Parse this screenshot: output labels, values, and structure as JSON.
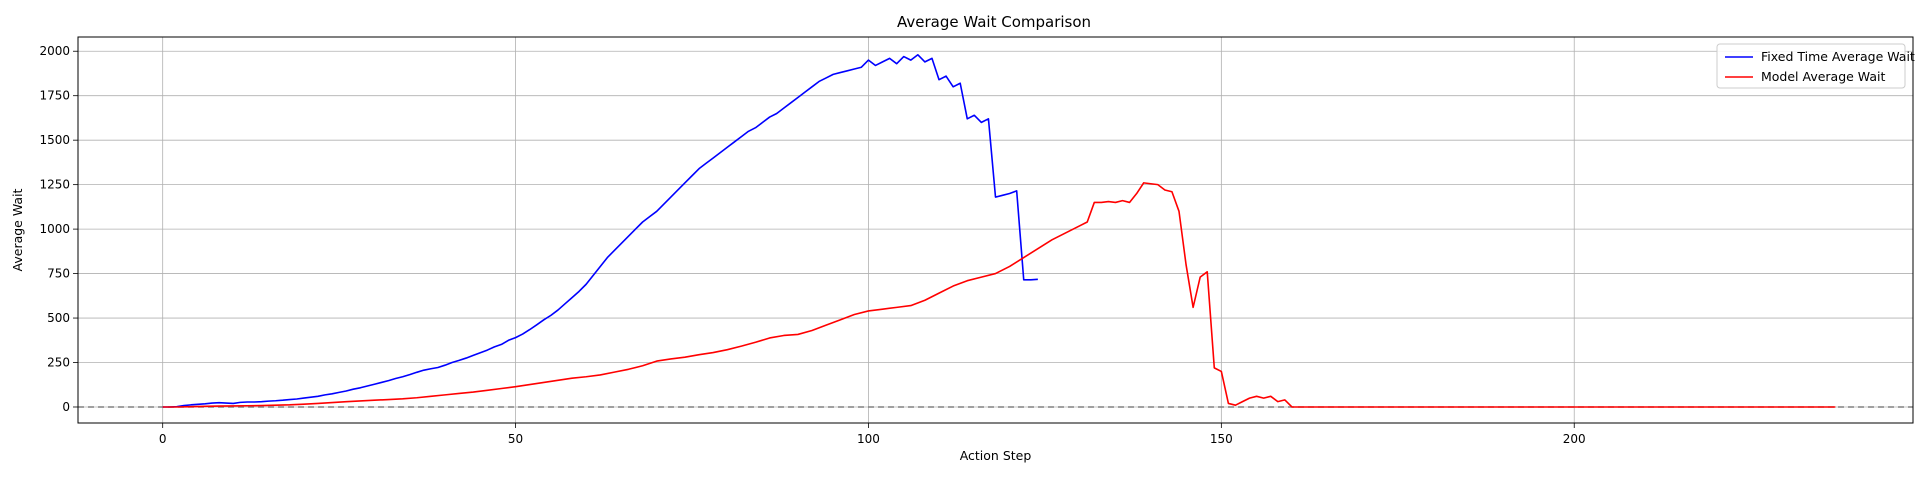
{
  "chart_data": {
    "type": "line",
    "title": "Average Wait Comparison",
    "xlabel": "Action Step",
    "ylabel": "Average Wait",
    "xlim": [
      -12,
      248
    ],
    "ylim": [
      -90,
      2080
    ],
    "xticks": [
      0,
      50,
      100,
      150,
      200
    ],
    "yticks": [
      0,
      250,
      500,
      750,
      1000,
      1250,
      1500,
      1750,
      2000
    ],
    "grid": true,
    "legend_position": "top-right",
    "reference_line": {
      "y": 0,
      "style": "dashed",
      "color": "#808080"
    },
    "series": [
      {
        "name": "Fixed Time Average Wait",
        "color": "#0000ff",
        "x": [
          0,
          1,
          2,
          3,
          4,
          5,
          6,
          7,
          8,
          9,
          10,
          11,
          12,
          13,
          14,
          15,
          16,
          17,
          18,
          19,
          20,
          21,
          22,
          23,
          24,
          25,
          26,
          27,
          28,
          29,
          30,
          31,
          32,
          33,
          34,
          35,
          36,
          37,
          38,
          39,
          40,
          41,
          42,
          43,
          44,
          45,
          46,
          47,
          48,
          49,
          50,
          51,
          52,
          53,
          54,
          55,
          56,
          57,
          58,
          59,
          60,
          61,
          62,
          63,
          64,
          65,
          66,
          67,
          68,
          69,
          70,
          71,
          72,
          73,
          74,
          75,
          76,
          77,
          78,
          79,
          80,
          81,
          82,
          83,
          84,
          85,
          86,
          87,
          88,
          89,
          90,
          91,
          92,
          93,
          94,
          95,
          96,
          97,
          98,
          99,
          100,
          101,
          102,
          103,
          104,
          105,
          106,
          107,
          108,
          109,
          110,
          111,
          112,
          113,
          114,
          115,
          116,
          117,
          118,
          119,
          120,
          121,
          122,
          123,
          124
        ],
        "y": [
          0,
          0,
          2,
          8,
          12,
          15,
          18,
          22,
          24,
          22,
          20,
          26,
          28,
          28,
          30,
          33,
          35,
          38,
          42,
          45,
          50,
          55,
          60,
          68,
          74,
          82,
          90,
          100,
          108,
          118,
          128,
          138,
          148,
          160,
          170,
          182,
          195,
          207,
          215,
          222,
          235,
          250,
          262,
          275,
          290,
          305,
          320,
          338,
          352,
          375,
          390,
          410,
          435,
          462,
          490,
          515,
          545,
          580,
          615,
          650,
          690,
          740,
          790,
          840,
          880,
          920,
          960,
          1000,
          1040,
          1070,
          1100,
          1140,
          1180,
          1220,
          1260,
          1300,
          1340,
          1370,
          1400,
          1430,
          1460,
          1490,
          1520,
          1550,
          1570,
          1600,
          1630,
          1650,
          1680,
          1710,
          1740,
          1770,
          1800,
          1830,
          1850,
          1870,
          1880,
          1890,
          1900,
          1910,
          1950,
          1920,
          1940,
          1960,
          1930,
          1970,
          1950,
          1980,
          1940,
          1960,
          1840,
          1860,
          1800,
          1820,
          1620,
          1640,
          1600,
          1620,
          1180,
          1190,
          1200,
          1215,
          715,
          715,
          718
        ]
      },
      {
        "name": "Model Average Wait",
        "color": "#ff0000",
        "x": [
          0,
          2,
          4,
          6,
          8,
          10,
          12,
          14,
          16,
          18,
          20,
          22,
          24,
          26,
          28,
          30,
          32,
          34,
          36,
          38,
          40,
          42,
          44,
          46,
          48,
          50,
          52,
          54,
          56,
          58,
          60,
          62,
          64,
          66,
          68,
          70,
          72,
          74,
          76,
          78,
          80,
          82,
          84,
          86,
          88,
          90,
          92,
          94,
          96,
          98,
          100,
          102,
          104,
          106,
          108,
          110,
          112,
          114,
          116,
          118,
          120,
          122,
          124,
          126,
          128,
          130,
          131,
          132,
          133,
          134,
          135,
          136,
          137,
          138,
          139,
          140,
          141,
          142,
          143,
          144,
          145,
          146,
          147,
          148,
          149,
          150,
          151,
          152,
          153,
          154,
          155,
          156,
          157,
          158,
          159,
          160,
          170,
          180,
          190,
          200,
          210,
          220,
          230,
          237
        ],
        "y": [
          0,
          0,
          2,
          4,
          5,
          6,
          7,
          8,
          10,
          12,
          16,
          20,
          25,
          30,
          34,
          38,
          42,
          46,
          52,
          60,
          68,
          76,
          84,
          94,
          104,
          114,
          126,
          138,
          150,
          162,
          170,
          180,
          196,
          212,
          232,
          258,
          270,
          280,
          294,
          306,
          322,
          342,
          364,
          388,
          402,
          408,
          430,
          460,
          490,
          520,
          540,
          550,
          560,
          570,
          600,
          640,
          680,
          710,
          730,
          750,
          790,
          840,
          890,
          940,
          980,
          1020,
          1040,
          1150,
          1150,
          1155,
          1150,
          1160,
          1150,
          1200,
          1260,
          1255,
          1250,
          1220,
          1210,
          1100,
          800,
          560,
          730,
          760,
          220,
          200,
          20,
          10,
          30,
          50,
          60,
          50,
          60,
          30,
          40,
          0,
          0,
          0,
          0,
          0,
          0,
          0,
          0,
          0
        ]
      }
    ]
  }
}
